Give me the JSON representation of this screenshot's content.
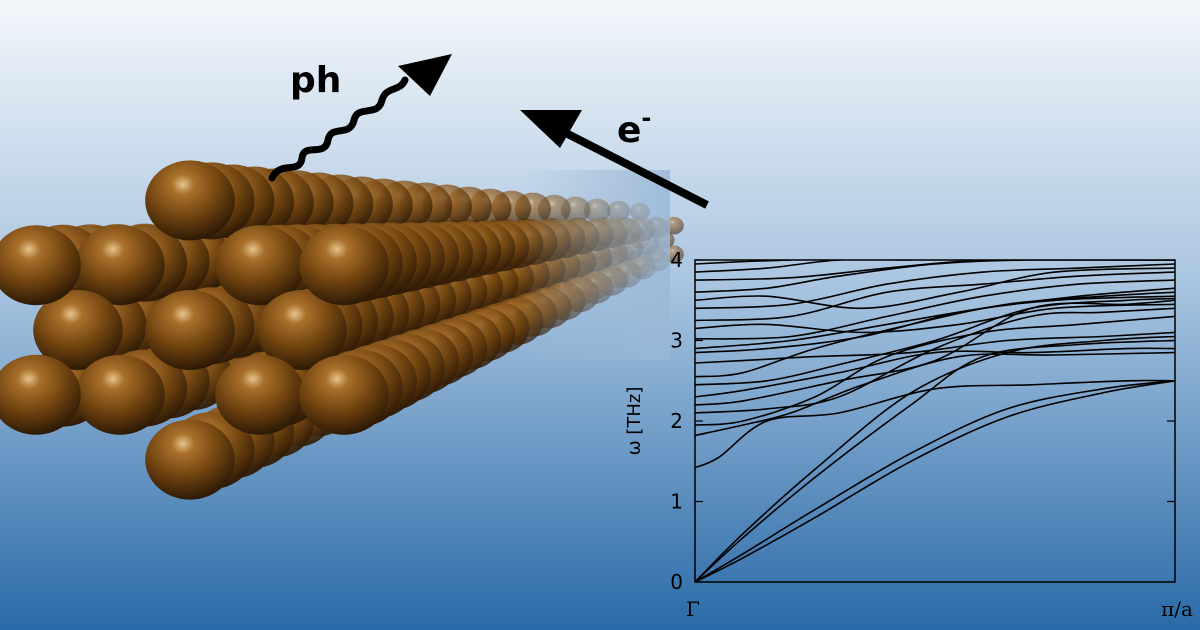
{
  "labels": {
    "phonon": "ph",
    "electron": "e",
    "electron_sup": "-"
  },
  "colors": {
    "bg_top": "#eef3f8",
    "bg_bottom": "#2f6fab",
    "atom": "#7a4a12",
    "atom_highlight": "#d9b27a",
    "atom_shadow": "#2e1a06",
    "line": "#000000"
  },
  "chart_data": {
    "type": "line",
    "title": "",
    "xlabel": "",
    "ylabel": "ω [THz]",
    "ylim": [
      0,
      4
    ],
    "xlim": [
      0,
      1
    ],
    "xtick_labels": [
      "Γ",
      "π/a"
    ],
    "yticks": [
      0,
      1,
      2,
      3,
      4
    ],
    "series": [
      {
        "x": [
          0,
          0.1,
          0.25,
          0.45,
          0.65,
          0.85,
          1.0
        ],
        "y": [
          0,
          0.3,
          0.8,
          1.5,
          2.05,
          2.35,
          2.5
        ]
      },
      {
        "x": [
          0,
          0.1,
          0.25,
          0.45,
          0.65,
          0.85,
          1.0
        ],
        "y": [
          0,
          0.35,
          0.9,
          1.6,
          2.15,
          2.4,
          2.5
        ]
      },
      {
        "x": [
          0,
          0.1,
          0.25,
          0.45,
          0.6,
          0.8,
          1.0
        ],
        "y": [
          0,
          0.55,
          1.3,
          2.2,
          2.8,
          2.95,
          3.0
        ]
      },
      {
        "x": [
          0,
          0.1,
          0.25,
          0.45,
          0.65,
          0.85,
          1.0
        ],
        "y": [
          0,
          0.6,
          1.4,
          2.35,
          2.85,
          3.0,
          3.05
        ]
      },
      {
        "x": [
          0,
          0.05,
          0.15,
          0.3,
          0.5,
          0.7,
          0.9,
          1.0
        ],
        "y": [
          1.42,
          1.55,
          2.0,
          2.1,
          2.4,
          2.45,
          2.5,
          2.5
        ]
      },
      {
        "x": [
          0,
          0.1,
          0.2,
          0.35,
          0.55,
          0.75,
          1.0
        ],
        "y": [
          1.82,
          1.95,
          2.1,
          2.45,
          2.8,
          2.82,
          2.85
        ]
      },
      {
        "x": [
          0,
          0.1,
          0.25,
          0.4,
          0.6,
          0.8,
          1.0
        ],
        "y": [
          1.95,
          2.0,
          2.3,
          2.8,
          3.1,
          3.2,
          3.3
        ]
      },
      {
        "x": [
          0,
          0.15,
          0.3,
          0.5,
          0.7,
          0.85,
          1.0
        ],
        "y": [
          2.1,
          2.15,
          2.3,
          2.9,
          3.3,
          3.35,
          3.4
        ]
      },
      {
        "x": [
          0,
          0.1,
          0.3,
          0.5,
          0.7,
          0.9,
          1.0
        ],
        "y": [
          2.2,
          2.25,
          2.5,
          2.75,
          3.4,
          3.45,
          3.5
        ]
      },
      {
        "x": [
          0,
          0.1,
          0.3,
          0.5,
          0.7,
          0.9,
          1.0
        ],
        "y": [
          2.3,
          2.38,
          2.6,
          2.85,
          2.85,
          2.9,
          2.9
        ]
      },
      {
        "x": [
          0,
          0.15,
          0.3,
          0.5,
          0.7,
          0.9,
          1.0
        ],
        "y": [
          2.45,
          2.5,
          2.7,
          3.0,
          3.4,
          3.5,
          3.52
        ]
      },
      {
        "x": [
          0,
          0.1,
          0.25,
          0.45,
          0.65,
          0.85,
          1.0
        ],
        "y": [
          2.55,
          2.6,
          2.9,
          3.2,
          3.45,
          3.55,
          3.6
        ]
      },
      {
        "x": [
          0,
          0.1,
          0.25,
          0.45,
          0.65,
          0.85,
          1.0
        ],
        "y": [
          2.72,
          2.75,
          2.8,
          2.85,
          3.0,
          3.05,
          3.1
        ]
      },
      {
        "x": [
          0,
          0.15,
          0.35,
          0.55,
          0.75,
          1.0
        ],
        "y": [
          2.85,
          2.9,
          3.05,
          3.35,
          3.5,
          3.55
        ]
      },
      {
        "x": [
          0,
          0.2,
          0.4,
          0.6,
          0.8,
          1.0
        ],
        "y": [
          2.9,
          3.0,
          3.2,
          3.4,
          3.55,
          3.65
        ]
      },
      {
        "x": [
          0,
          0.2,
          0.4,
          0.6,
          0.8,
          1.0
        ],
        "y": [
          3.02,
          3.05,
          3.3,
          3.55,
          3.7,
          3.75
        ]
      },
      {
        "x": [
          0,
          0.15,
          0.35,
          0.55,
          0.75,
          1.0
        ],
        "y": [
          3.15,
          3.2,
          3.1,
          3.2,
          3.4,
          3.45
        ]
      },
      {
        "x": [
          0,
          0.2,
          0.4,
          0.6,
          0.8,
          1.0
        ],
        "y": [
          3.25,
          3.3,
          3.6,
          3.7,
          3.8,
          3.85
        ]
      },
      {
        "x": [
          0,
          0.2,
          0.4,
          0.6,
          0.8,
          1.0
        ],
        "y": [
          3.4,
          3.45,
          3.7,
          3.85,
          3.9,
          3.95
        ]
      },
      {
        "x": [
          0,
          0.15,
          0.35,
          0.55,
          0.75,
          1.0
        ],
        "y": [
          3.5,
          3.55,
          3.4,
          3.6,
          3.85,
          3.9
        ]
      },
      {
        "x": [
          0,
          0.15,
          0.3,
          0.5,
          0.7,
          1.0
        ],
        "y": [
          3.6,
          3.65,
          3.8,
          3.95,
          4.0,
          4.0
        ]
      },
      {
        "x": [
          0,
          0.2,
          0.4,
          0.6,
          0.8,
          1.0
        ],
        "y": [
          3.75,
          3.78,
          3.9,
          4.0,
          4.0,
          4.0
        ]
      },
      {
        "x": [
          0,
          0.15,
          0.3,
          0.45
        ],
        "y": [
          3.85,
          3.9,
          4.0,
          4.0
        ]
      },
      {
        "x": [
          0,
          0.1,
          0.2
        ],
        "y": [
          3.95,
          3.98,
          4.0
        ]
      }
    ]
  }
}
